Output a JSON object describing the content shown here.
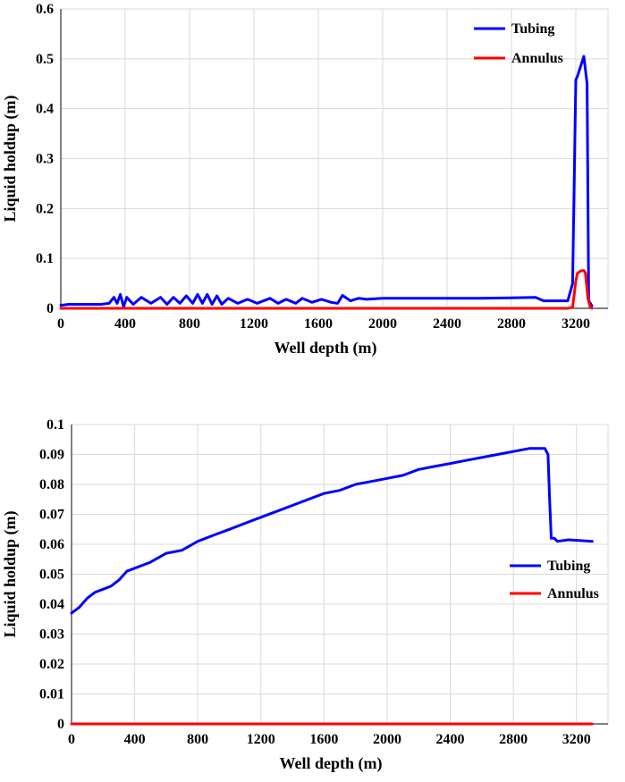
{
  "chart_data": [
    {
      "type": "line",
      "xlabel": "Well depth (m)",
      "ylabel": "Liquid holdup (m)",
      "xlim": [
        0,
        3400
      ],
      "ylim": [
        0,
        0.6
      ],
      "xticks": [
        0,
        400,
        800,
        1200,
        1600,
        2000,
        2400,
        2800,
        3200
      ],
      "xtick_labels": [
        "0",
        "400",
        "800",
        "1200",
        "1600",
        "2000",
        "2400",
        "2800",
        "3200"
      ],
      "yticks": [
        0,
        0.1,
        0.2,
        0.3,
        0.4,
        0.5,
        0.6
      ],
      "ytick_labels": [
        "0",
        "0.1",
        "0.2",
        "0.3",
        "0.4",
        "0.5",
        "0.6"
      ],
      "grid": true,
      "legend_position": "top-right",
      "series": [
        {
          "name": "Tubing",
          "color": "#0000ff",
          "x": [
            0,
            50,
            150,
            250,
            300,
            330,
            350,
            370,
            390,
            410,
            450,
            500,
            560,
            620,
            660,
            700,
            740,
            780,
            820,
            850,
            880,
            910,
            940,
            970,
            1000,
            1040,
            1100,
            1160,
            1220,
            1300,
            1350,
            1400,
            1460,
            1500,
            1560,
            1620,
            1680,
            1720,
            1750,
            1800,
            1850,
            1900,
            2000,
            2200,
            2400,
            2600,
            2800,
            2950,
            3000,
            3050,
            3150,
            3180,
            3200,
            3210,
            3230,
            3250,
            3270,
            3280,
            3300
          ],
          "y": [
            0.006,
            0.008,
            0.008,
            0.008,
            0.01,
            0.022,
            0.01,
            0.028,
            0.003,
            0.022,
            0.008,
            0.022,
            0.01,
            0.022,
            0.008,
            0.022,
            0.01,
            0.025,
            0.01,
            0.028,
            0.01,
            0.028,
            0.008,
            0.025,
            0.008,
            0.02,
            0.01,
            0.018,
            0.01,
            0.02,
            0.01,
            0.018,
            0.01,
            0.02,
            0.012,
            0.018,
            0.012,
            0.01,
            0.026,
            0.015,
            0.02,
            0.018,
            0.02,
            0.02,
            0.02,
            0.02,
            0.021,
            0.022,
            0.015,
            0.015,
            0.015,
            0.05,
            0.458,
            0.465,
            0.485,
            0.505,
            0.45,
            0.015,
            0.005
          ]
        },
        {
          "name": "Annulus",
          "color": "#ff0000",
          "x": [
            0,
            3000,
            3100,
            3150,
            3180,
            3200,
            3210,
            3230,
            3250,
            3260,
            3275,
            3290,
            3300
          ],
          "y": [
            0,
            0,
            0,
            0,
            0.002,
            0.055,
            0.07,
            0.075,
            0.076,
            0.07,
            0.02,
            0.002,
            0
          ]
        }
      ]
    },
    {
      "type": "line",
      "xlabel": "Well depth (m)",
      "ylabel": "Liquid holdup (m)",
      "xlim": [
        0,
        3400
      ],
      "ylim": [
        0,
        0.1
      ],
      "xticks": [
        0,
        400,
        800,
        1200,
        1600,
        2000,
        2400,
        2800,
        3200
      ],
      "xtick_labels": [
        "0",
        "400",
        "800",
        "1200",
        "1600",
        "2000",
        "2400",
        "2800",
        "3200"
      ],
      "yticks": [
        0,
        0.01,
        0.02,
        0.03,
        0.04,
        0.05,
        0.06,
        0.07,
        0.08,
        0.09,
        0.1
      ],
      "ytick_labels": [
        "0",
        "0.01",
        "0.02",
        "0.03",
        "0.04",
        "0.05",
        "0.06",
        "0.07",
        "0.08",
        "0.09",
        "0.1"
      ],
      "grid": true,
      "legend_position": "right",
      "series": [
        {
          "name": "Tubing",
          "color": "#0000ff",
          "x": [
            0,
            50,
            100,
            150,
            200,
            250,
            300,
            350,
            400,
            500,
            600,
            700,
            800,
            900,
            1000,
            1100,
            1200,
            1300,
            1400,
            1500,
            1600,
            1700,
            1800,
            1900,
            2000,
            2100,
            2200,
            2300,
            2400,
            2500,
            2600,
            2700,
            2800,
            2900,
            2950,
            3000,
            3020,
            3030,
            3040,
            3060,
            3080,
            3150,
            3300
          ],
          "y": [
            0.037,
            0.039,
            0.042,
            0.044,
            0.045,
            0.046,
            0.048,
            0.051,
            0.052,
            0.054,
            0.057,
            0.058,
            0.061,
            0.063,
            0.065,
            0.067,
            0.069,
            0.071,
            0.073,
            0.075,
            0.077,
            0.078,
            0.08,
            0.081,
            0.082,
            0.083,
            0.085,
            0.086,
            0.087,
            0.088,
            0.089,
            0.09,
            0.091,
            0.092,
            0.092,
            0.092,
            0.09,
            0.075,
            0.062,
            0.062,
            0.061,
            0.0615,
            0.061
          ]
        },
        {
          "name": "Annulus",
          "color": "#ff0000",
          "x": [
            0,
            3300
          ],
          "y": [
            0,
            0
          ]
        }
      ]
    }
  ]
}
